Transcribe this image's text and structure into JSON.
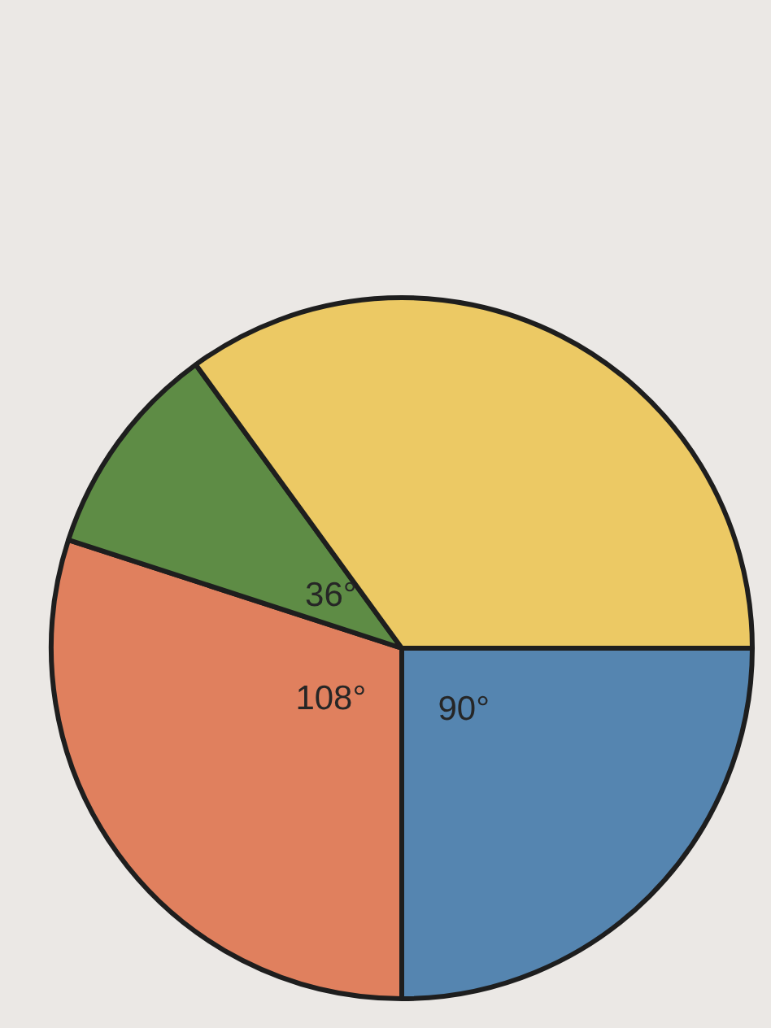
{
  "chart_data": {
    "type": "pie",
    "categories": [
      null,
      null,
      null,
      null
    ],
    "values": [
      90,
      108,
      36,
      126
    ],
    "colors": [
      "#5585b0",
      "#e0805e",
      "#5e8c45",
      "#ecc964"
    ],
    "value_labels": [
      "90°",
      "108°",
      "36°",
      null
    ]
  }
}
